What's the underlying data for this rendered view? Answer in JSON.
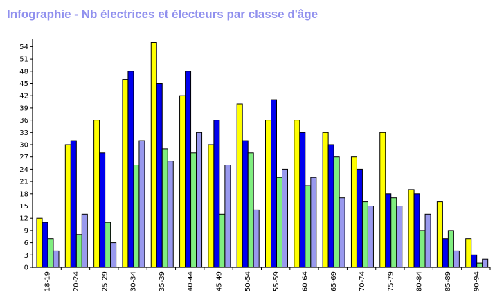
{
  "chart_data": {
    "type": "bar",
    "title": "Infographie - Nb électrices et électeurs par classe d'âge",
    "categories": [
      "18-19",
      "20-24",
      "25-29",
      "30-34",
      "35-39",
      "40-44",
      "45-49",
      "50-54",
      "55-59",
      "60-64",
      "65-69",
      "70-74",
      "75-79",
      "80-84",
      "85-89",
      "90-94"
    ],
    "y_ticks": [
      0,
      3,
      6,
      9,
      12,
      15,
      18,
      21,
      24,
      27,
      30,
      33,
      36,
      39,
      42,
      45,
      48,
      51,
      54
    ],
    "ylim": [
      0,
      56
    ],
    "grid": false,
    "legend": "none",
    "series": [
      {
        "color": "#ffff00",
        "values": [
          12,
          30,
          36,
          46,
          55,
          42,
          30,
          40,
          36,
          36,
          33,
          27,
          33,
          19,
          16,
          7
        ]
      },
      {
        "color": "#0000ee",
        "values": [
          11,
          31,
          28,
          48,
          45,
          48,
          36,
          31,
          41,
          33,
          30,
          24,
          18,
          18,
          7,
          3
        ]
      },
      {
        "color": "#80ee80",
        "values": [
          7,
          8,
          11,
          25,
          29,
          28,
          13,
          28,
          22,
          20,
          27,
          16,
          17,
          9,
          9,
          1
        ]
      },
      {
        "color": "#9999ee",
        "values": [
          4,
          13,
          6,
          31,
          26,
          33,
          25,
          14,
          24,
          22,
          17,
          15,
          15,
          13,
          4,
          2
        ]
      }
    ]
  }
}
